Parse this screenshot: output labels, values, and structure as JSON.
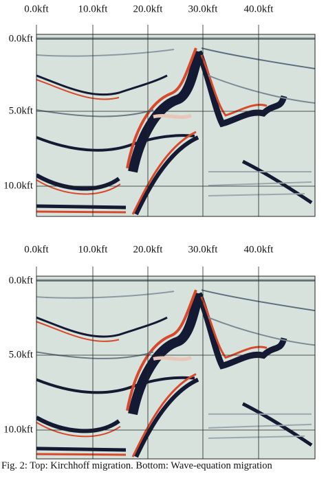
{
  "panels": [
    {
      "x_labels": [
        "0.0kft",
        "10.0kft",
        "20.0kft",
        "30.0kft",
        "40.0kft"
      ],
      "y_labels": [
        "0.0kft",
        "5.0kft",
        "10.0kft"
      ]
    },
    {
      "x_labels": [
        "0.0kft",
        "10.0kft",
        "20.0kft",
        "30.0kft",
        "40.0kft"
      ],
      "y_labels": [
        "0.0kft",
        "5.0kft",
        "10.0kft"
      ]
    }
  ],
  "caption": "Fig. 2: Top: Kirchhoff migration. Bottom: Wave-equation migration"
}
